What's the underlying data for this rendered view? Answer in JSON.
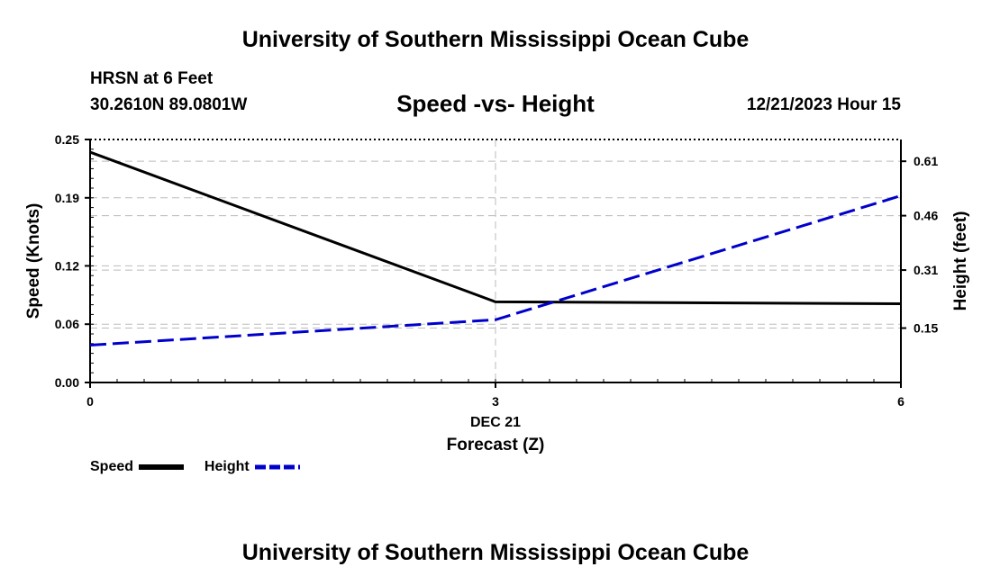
{
  "header": {
    "title": "University of Southern Mississippi Ocean Cube",
    "station": "HRSN at 6 Feet",
    "coords": "30.2610N  89.0801W",
    "chart_title": "Speed -vs- Height",
    "datetime": "12/21/2023 Hour 15"
  },
  "footer": {
    "title": "University of Southern Mississippi Ocean Cube"
  },
  "legend": {
    "speed_label": "Speed",
    "height_label": "Height"
  },
  "colors": {
    "speed": "#000000",
    "height": "#0000cc",
    "grid": "#bbbbbb"
  },
  "chart_data": {
    "type": "line",
    "title": "Speed -vs- Height",
    "xlabel": "Forecast (Z)",
    "x_date_label": "DEC 21",
    "x": [
      0,
      3,
      6
    ],
    "x_tick_labels": [
      "0",
      "3",
      "6"
    ],
    "xlim": [
      0,
      6
    ],
    "y_left": {
      "label": "Speed (Knots)",
      "ylim": [
        0,
        0.25
      ],
      "ticks": [
        0,
        0.06,
        0.12,
        0.19,
        0.25
      ],
      "tick_labels": [
        "0.00",
        "0.06",
        "0.12",
        "0.19",
        "0.25"
      ]
    },
    "y_right": {
      "label": "Height (feet)",
      "ylim": [
        0,
        0.67
      ],
      "ticks": [
        0.15,
        0.31,
        0.46,
        0.61
      ],
      "tick_labels": [
        "0.15",
        "0.31",
        "0.46",
        "0.61"
      ]
    },
    "series": [
      {
        "name": "Speed",
        "axis": "left",
        "style": "solid",
        "values": [
          0.237,
          0.083,
          0.081
        ]
      },
      {
        "name": "Height",
        "axis": "right",
        "style": "dashed",
        "values": [
          0.103,
          0.173,
          0.515
        ]
      }
    ]
  }
}
